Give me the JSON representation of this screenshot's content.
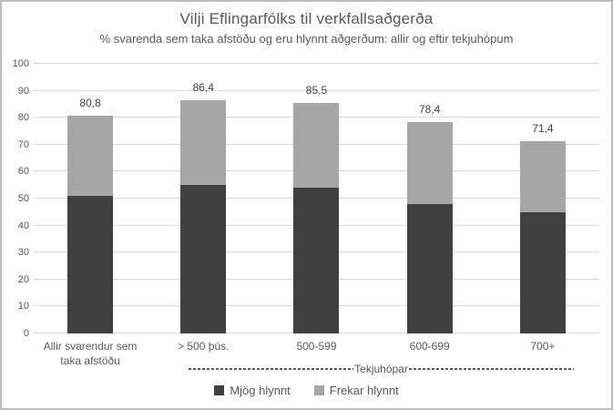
{
  "title": "Vilji Eflingarfólks til verkfallsaðgerða",
  "subtitle": "% svarenda sem taka afstöðu og eru hlynnt aðgerðum: allir og eftir tekjuhópum",
  "colors": {
    "series_dark": "#404040",
    "series_light": "#a6a6a6",
    "gridline": "#d9d9d9",
    "text": "#595959",
    "frame_border": "#bdbdbd"
  },
  "chart_data": {
    "type": "bar",
    "stacked": true,
    "title": "Vilji Eflingarfólks til verkfallsaðgerða",
    "subtitle": "% svarenda sem taka afstöðu og eru hlynnt aðgerðum: allir og eftir tekjuhópum",
    "categories": [
      "Allir svarendur sem taka afstöðu",
      "> 500 þús.",
      "500-599",
      "600-699",
      "700+"
    ],
    "series": [
      {
        "name": "Mjög hlynnt",
        "color": "#404040",
        "values": [
          51,
          55,
          54,
          48,
          45
        ]
      },
      {
        "name": "Frekar hlynnt",
        "color": "#a6a6a6",
        "values": [
          29.8,
          31.4,
          31.5,
          30.4,
          26.4
        ]
      }
    ],
    "totals": [
      80.8,
      86.4,
      85.5,
      78.4,
      71.4
    ],
    "total_labels": [
      "80,8",
      "86,4",
      "85,5",
      "78,4",
      "71,4"
    ],
    "ylim": [
      0,
      100
    ],
    "yticks": [
      0,
      10,
      20,
      30,
      40,
      50,
      60,
      70,
      80,
      90,
      100
    ],
    "grid": true,
    "legend_position": "bottom",
    "x_group_label": "Tekjuhópar",
    "x_group_span_categories": [
      "> 500 þús.",
      "500-599",
      "600-699",
      "700+"
    ]
  },
  "legend": {
    "items": [
      {
        "label": "Mjög hlynnt",
        "color": "#404040"
      },
      {
        "label": "Frekar hlynnt",
        "color": "#a6a6a6"
      }
    ]
  },
  "x_axis": {
    "group_label": "Tekjuhópar"
  }
}
